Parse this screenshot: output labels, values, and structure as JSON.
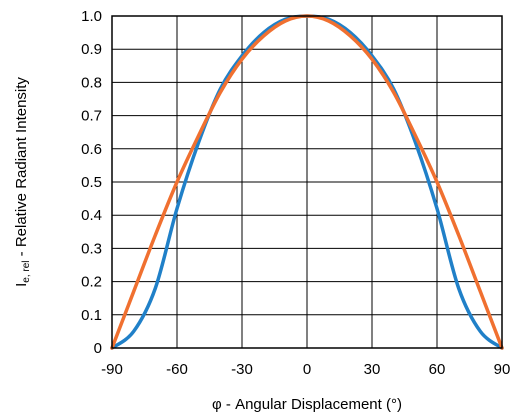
{
  "chart_data": {
    "type": "line",
    "xlabel": "φ - Angular Displacement (°)",
    "ylabel": {
      "prefix": "I",
      "subscript": "e, rel",
      "suffix": " - Relative Radiant Intensity"
    },
    "xlim": [
      -90,
      90
    ],
    "ylim": [
      0,
      1.0
    ],
    "xticks": [
      -90,
      -60,
      -30,
      0,
      30,
      60,
      90
    ],
    "xtick_labels": [
      "-90",
      "-60",
      "-30",
      "0",
      "30",
      "60",
      "90"
    ],
    "yticks": [
      0,
      0.1,
      0.2,
      0.3,
      0.4,
      0.5,
      0.6,
      0.7,
      0.8,
      0.9,
      1.0
    ],
    "ytick_labels": [
      "0",
      "0.1",
      "0.2",
      "0.3",
      "0.4",
      "0.5",
      "0.6",
      "0.7",
      "0.8",
      "0.9",
      "1.0"
    ],
    "grid": true,
    "series": [
      {
        "color": "#2080c8",
        "x": [
          -90,
          -80,
          -70,
          -60,
          -50,
          -40,
          -30,
          -20,
          -10,
          0,
          10,
          20,
          30,
          40,
          50,
          60,
          70,
          80,
          90
        ],
        "y": [
          0,
          0.05,
          0.18,
          0.42,
          0.62,
          0.78,
          0.88,
          0.95,
          0.99,
          1.0,
          0.99,
          0.95,
          0.88,
          0.78,
          0.62,
          0.42,
          0.18,
          0.05,
          0
        ]
      },
      {
        "color": "#f07030",
        "x": [
          -90,
          -80,
          -70,
          -60,
          -50,
          -40,
          -30,
          -20,
          -10,
          0,
          10,
          20,
          30,
          40,
          50,
          60,
          70,
          80,
          90
        ],
        "y": [
          0,
          0.17,
          0.34,
          0.5,
          0.64,
          0.77,
          0.87,
          0.94,
          0.985,
          1.0,
          0.985,
          0.94,
          0.87,
          0.77,
          0.64,
          0.5,
          0.34,
          0.17,
          0
        ]
      }
    ]
  }
}
